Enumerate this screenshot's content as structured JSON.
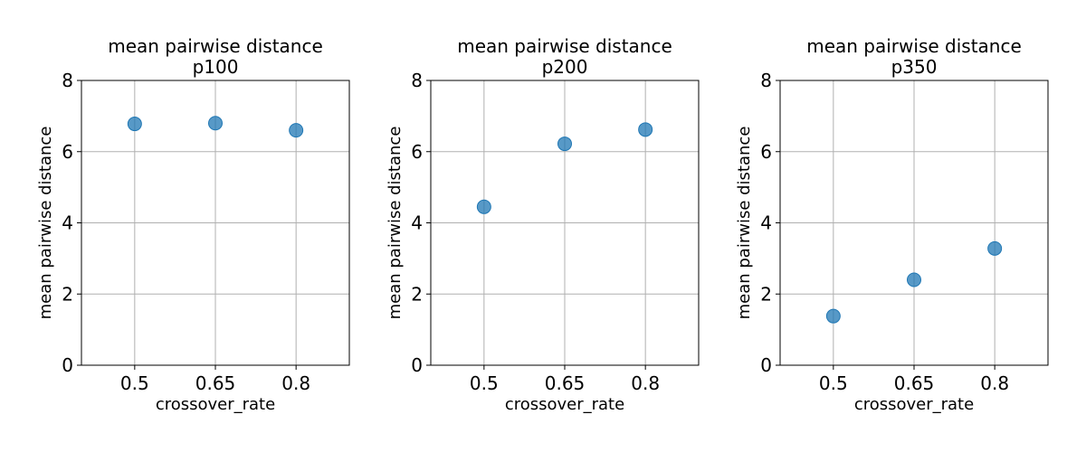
{
  "chart_data": [
    {
      "type": "scatter",
      "title": "mean pairwise distance",
      "subtitle": "p100",
      "xlabel": "crossover_rate",
      "ylabel": "mean pairwise distance",
      "x_categories": [
        "0.5",
        "0.65",
        "0.8"
      ],
      "y_values": [
        6.78,
        6.8,
        6.6
      ],
      "ylim": [
        0,
        8
      ],
      "yticks": [
        "0",
        "2",
        "4",
        "6",
        "8"
      ],
      "grid": true,
      "color": "#1f77b4"
    },
    {
      "type": "scatter",
      "title": "mean pairwise distance",
      "subtitle": "p200",
      "xlabel": "crossover_rate",
      "ylabel": "mean pairwise distance",
      "x_categories": [
        "0.5",
        "0.65",
        "0.8"
      ],
      "y_values": [
        4.45,
        6.22,
        6.62
      ],
      "ylim": [
        0,
        8
      ],
      "yticks": [
        "0",
        "2",
        "4",
        "6",
        "8"
      ],
      "grid": true,
      "color": "#1f77b4"
    },
    {
      "type": "scatter",
      "title": "mean pairwise distance",
      "subtitle": "p350",
      "xlabel": "crossover_rate",
      "ylabel": "mean pairwise distance",
      "x_categories": [
        "0.5",
        "0.65",
        "0.8"
      ],
      "y_values": [
        1.38,
        2.4,
        3.28
      ],
      "ylim": [
        0,
        8
      ],
      "yticks": [
        "0",
        "2",
        "4",
        "6",
        "8"
      ],
      "grid": true,
      "color": "#1f77b4"
    }
  ]
}
